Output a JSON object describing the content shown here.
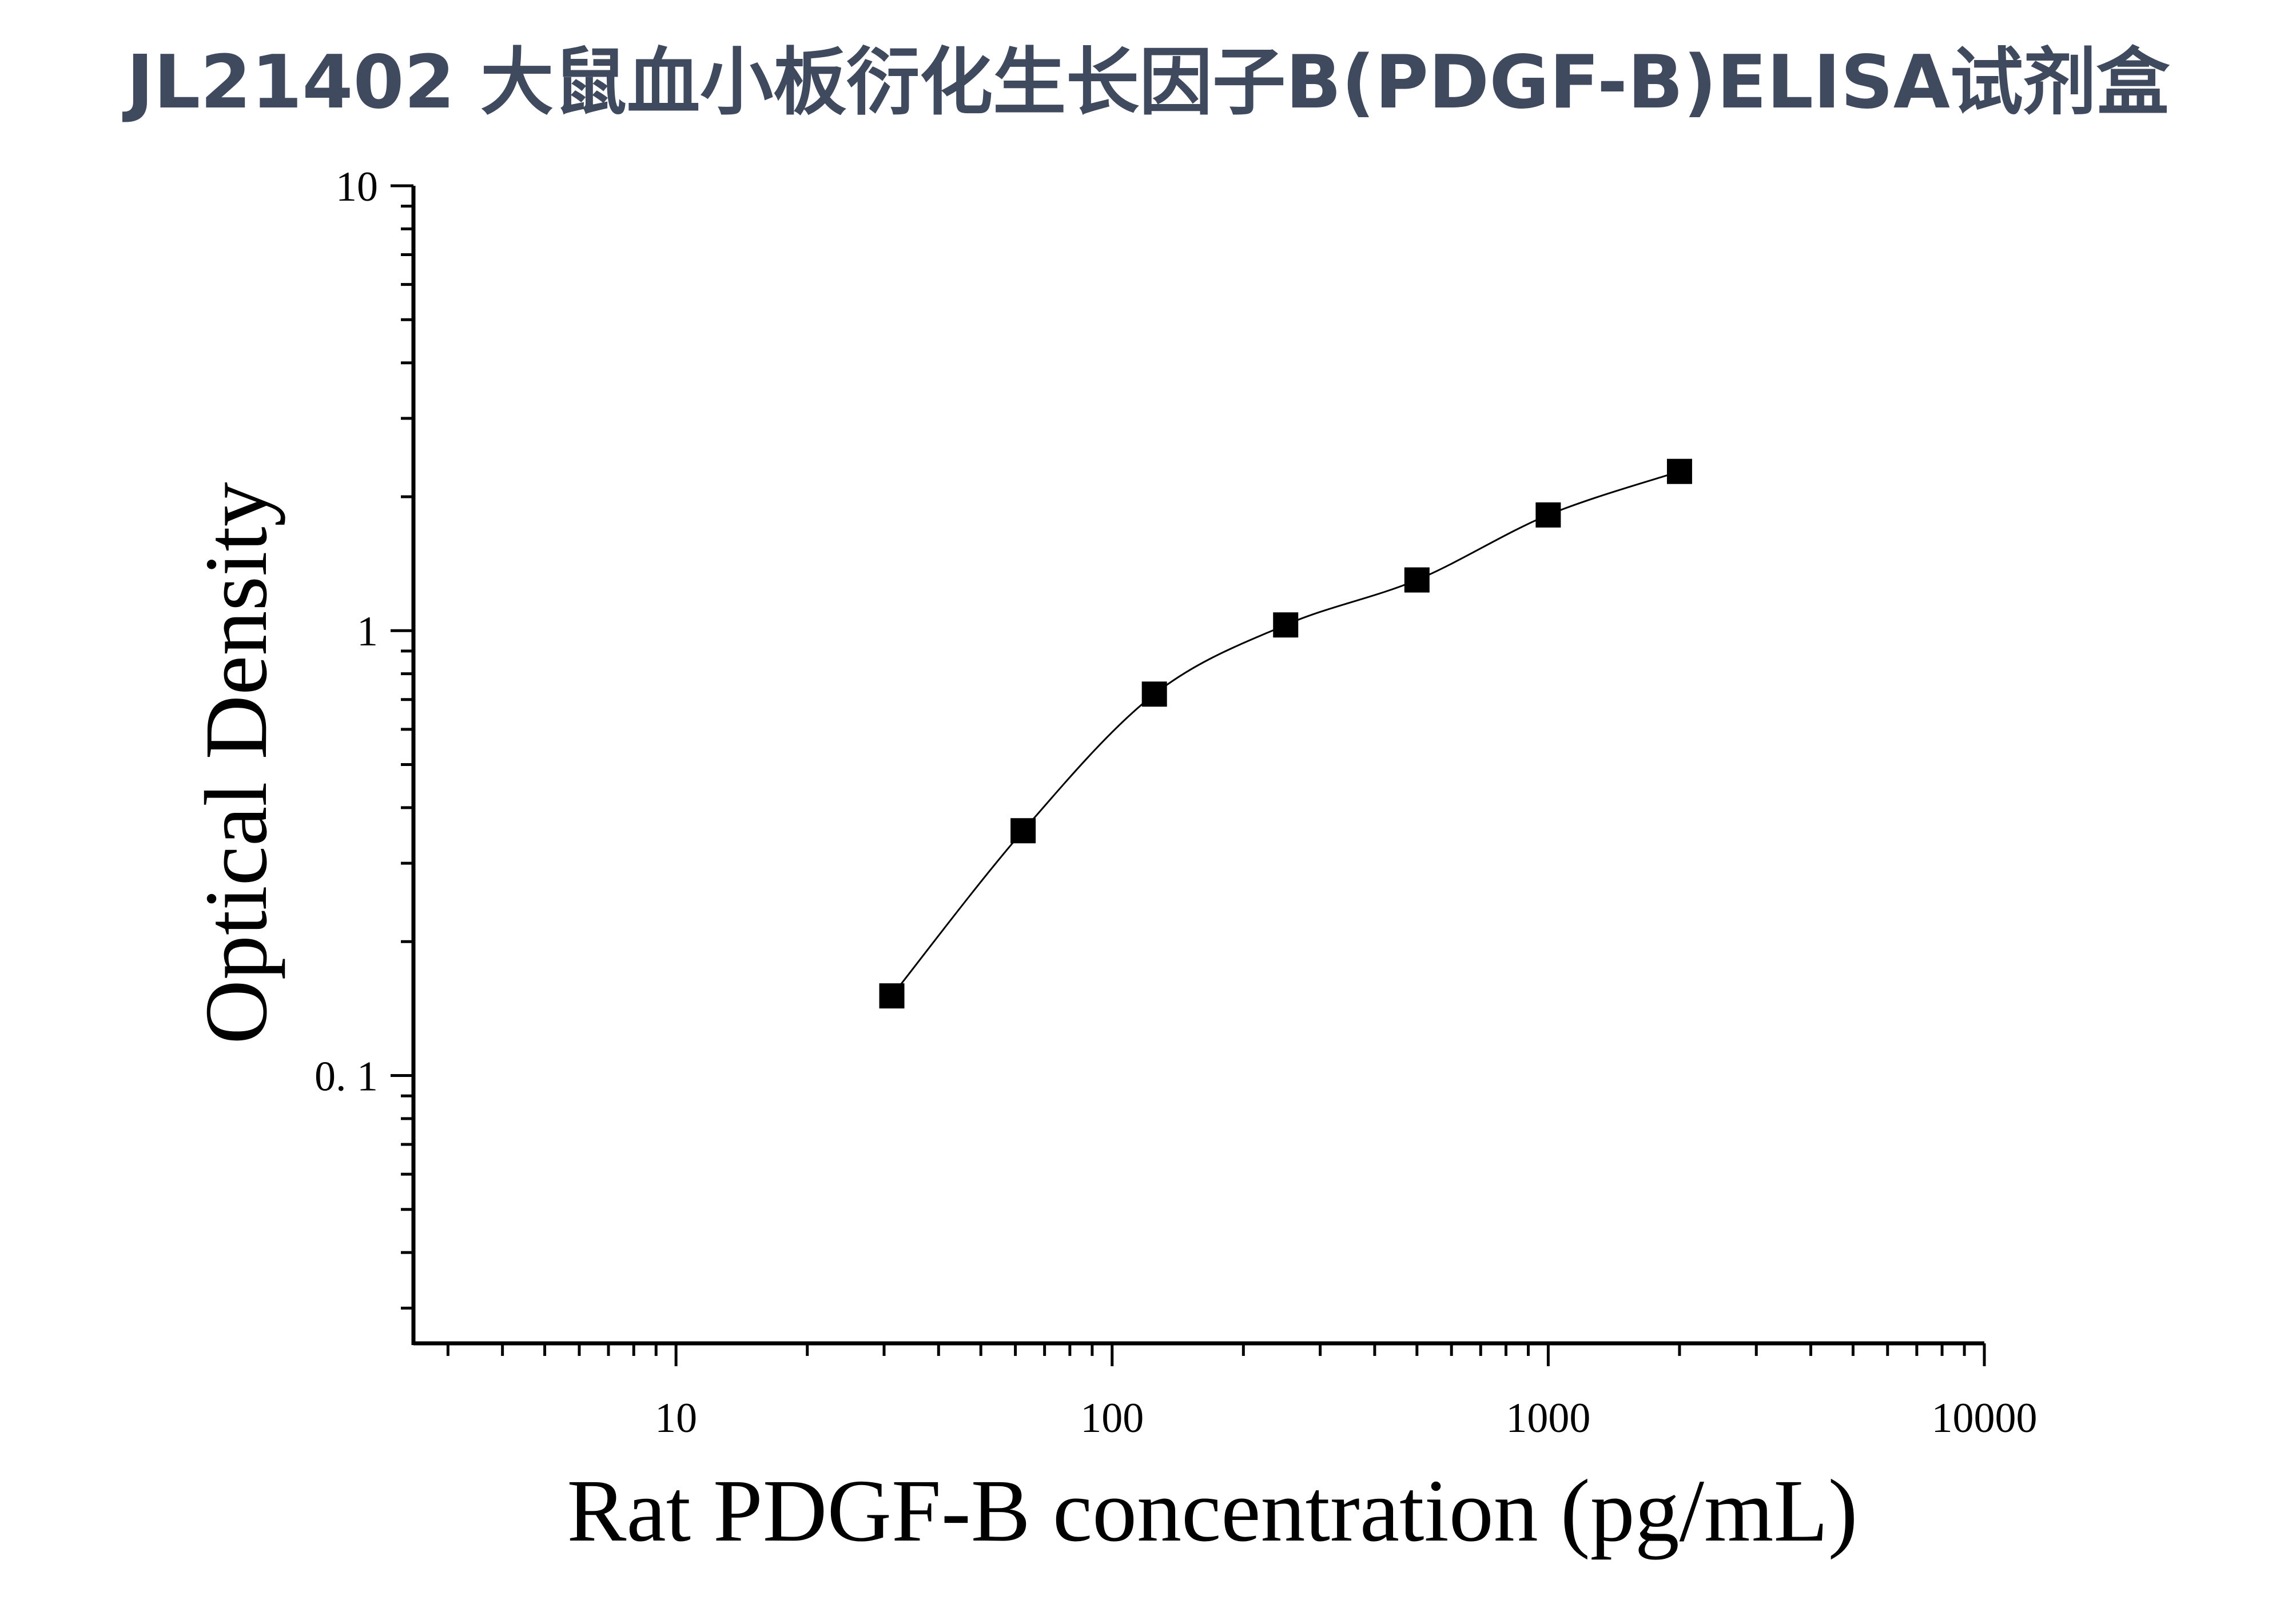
{
  "title": "JL21402 大鼠血小板衍化生长因子B(PDGF-B)ELISA试剂盒",
  "chart_data": {
    "type": "scatter",
    "xlabel": "Rat PDGF-B concentration (pg/mL)",
    "ylabel": "Optical Density",
    "xscale": "log",
    "yscale": "log",
    "xlim": [
      2.5,
      10000
    ],
    "ylim": [
      0.025,
      10
    ],
    "xticks": [
      10,
      100,
      1000,
      10000
    ],
    "xtick_labels": [
      "10",
      "100",
      "1000",
      "10000"
    ],
    "yticks": [
      0.1,
      1,
      10
    ],
    "ytick_labels": [
      "0. 1",
      "1",
      "10"
    ],
    "grid": false,
    "fit_curve": true,
    "series": [
      {
        "x": [
          31.25,
          62.5,
          125,
          250,
          500,
          1000,
          2000
        ],
        "y": [
          0.151,
          0.355,
          0.72,
          1.03,
          1.3,
          1.82,
          2.28
        ]
      }
    ]
  }
}
